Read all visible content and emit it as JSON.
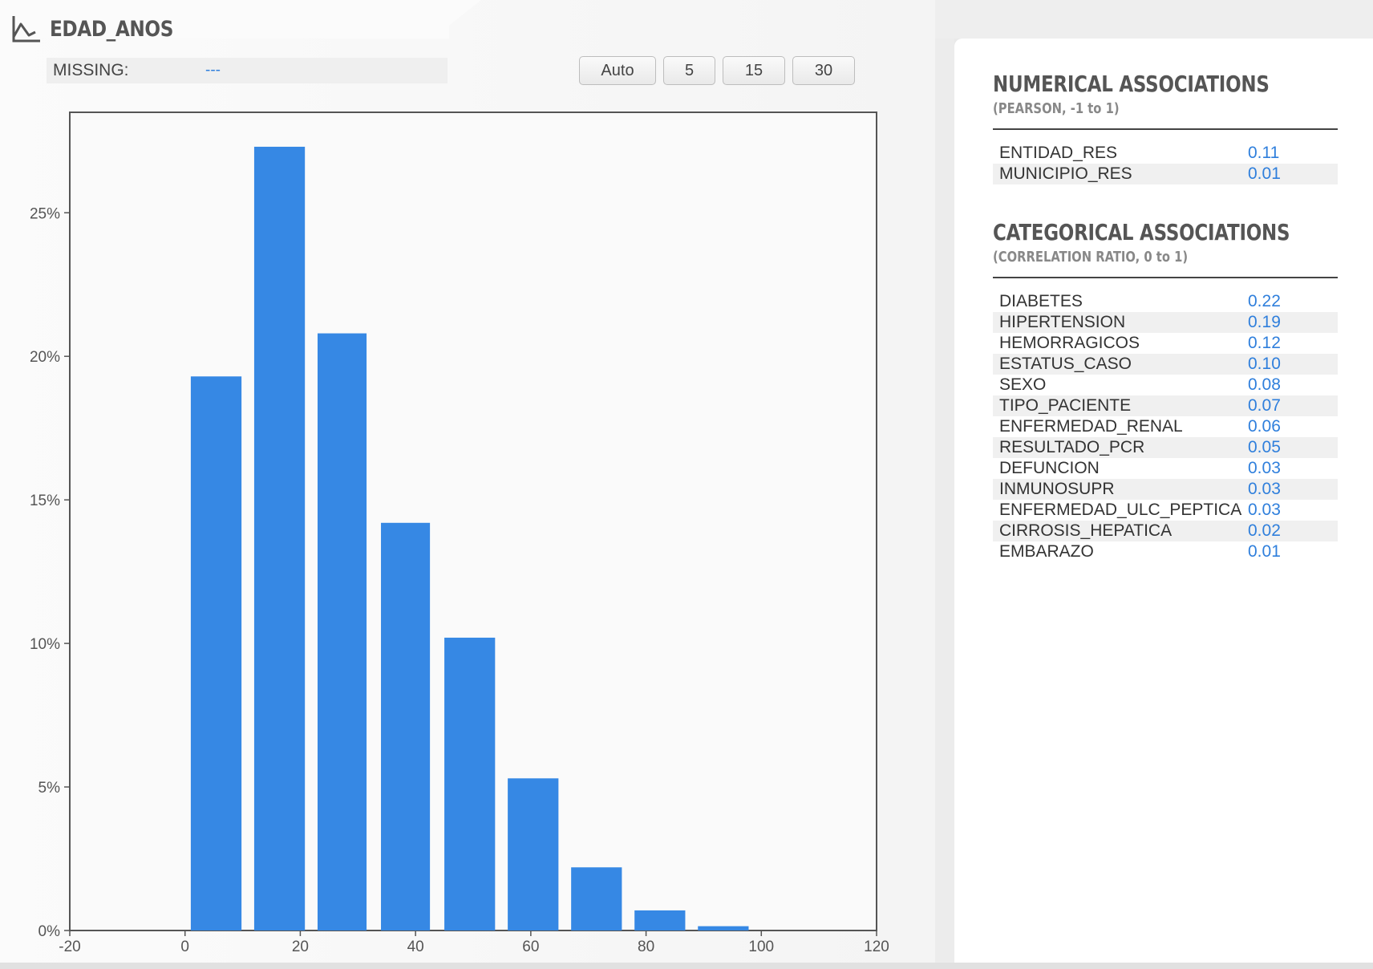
{
  "header": {
    "title": "EDAD_ANOS",
    "icon": "line-chart-icon"
  },
  "missing": {
    "label": "MISSING:",
    "value": "---"
  },
  "bin_buttons": [
    {
      "label": "Auto"
    },
    {
      "label": "5"
    },
    {
      "label": "15"
    },
    {
      "label": "30"
    }
  ],
  "chart_data": {
    "type": "bar",
    "title": "",
    "xlabel": "",
    "ylabel": "",
    "xlim": [
      -20,
      120
    ],
    "ylim": [
      0,
      28.5
    ],
    "x_ticks": [
      -20,
      0,
      20,
      40,
      60,
      80,
      100,
      120
    ],
    "y_ticks": [
      0,
      5,
      10,
      15,
      20,
      25
    ],
    "y_tick_labels": [
      "0%",
      "5%",
      "10%",
      "15%",
      "20%",
      "25%"
    ],
    "bar_color": "#3688e4",
    "bins": [
      {
        "start": 1,
        "end": 9.8,
        "value": 19.3
      },
      {
        "start": 12,
        "end": 20.8,
        "value": 27.3
      },
      {
        "start": 23,
        "end": 31.5,
        "value": 20.8
      },
      {
        "start": 34,
        "end": 42.5,
        "value": 14.2
      },
      {
        "start": 45,
        "end": 53.8,
        "value": 10.2
      },
      {
        "start": 56,
        "end": 64.8,
        "value": 5.3
      },
      {
        "start": 67,
        "end": 75.8,
        "value": 2.2
      },
      {
        "start": 78,
        "end": 86.8,
        "value": 0.7
      },
      {
        "start": 89,
        "end": 97.8,
        "value": 0.15
      }
    ],
    "grid": false
  },
  "numerical": {
    "heading": "NUMERICAL ASSOCIATIONS",
    "subheading": "(PEARSON, -1 to 1)",
    "rows": [
      {
        "name": "ENTIDAD_RES",
        "value": "0.11"
      },
      {
        "name": "MUNICIPIO_RES",
        "value": "0.01"
      }
    ]
  },
  "categorical": {
    "heading": "CATEGORICAL ASSOCIATIONS",
    "subheading": "(CORRELATION RATIO, 0 to 1)",
    "rows": [
      {
        "name": "DIABETES",
        "value": "0.22"
      },
      {
        "name": "HIPERTENSION",
        "value": "0.19"
      },
      {
        "name": "HEMORRAGICOS",
        "value": "0.12"
      },
      {
        "name": "ESTATUS_CASO",
        "value": "0.10"
      },
      {
        "name": "SEXO",
        "value": "0.08"
      },
      {
        "name": "TIPO_PACIENTE",
        "value": "0.07"
      },
      {
        "name": "ENFERMEDAD_RENAL",
        "value": "0.06"
      },
      {
        "name": "RESULTADO_PCR",
        "value": "0.05"
      },
      {
        "name": "DEFUNCION",
        "value": "0.03"
      },
      {
        "name": "INMUNOSUPR",
        "value": "0.03"
      },
      {
        "name": "ENFERMEDAD_ULC_PEPTICA",
        "value": "0.03"
      },
      {
        "name": "CIRROSIS_HEPATICA",
        "value": "0.02"
      },
      {
        "name": "EMBARAZO",
        "value": "0.01"
      }
    ]
  }
}
